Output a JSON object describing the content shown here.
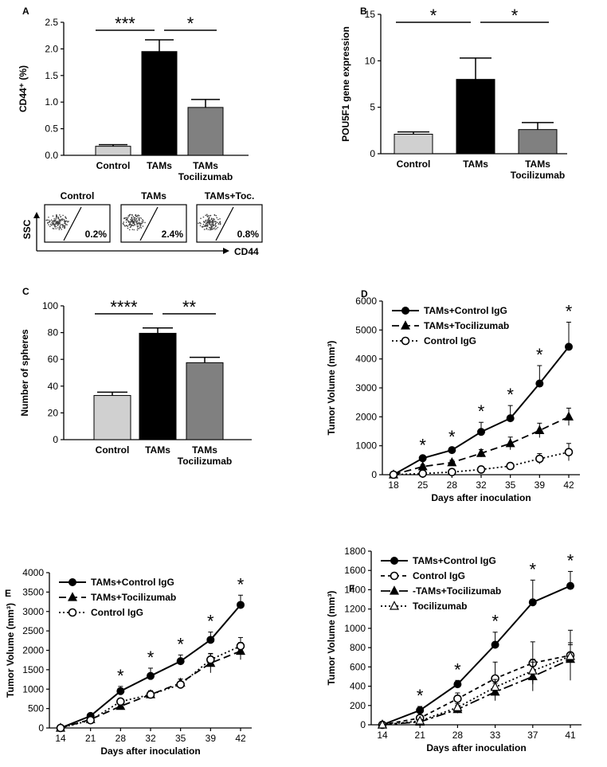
{
  "chart_data": [
    {
      "panel": "A",
      "type": "bar",
      "categories": [
        "Control",
        "TAMs",
        "TAMs\nTocilizumab"
      ],
      "values": [
        0.17,
        1.95,
        0.9
      ],
      "errors": [
        0.03,
        0.22,
        0.15
      ],
      "colors": [
        "#d0d0d0",
        "#000000",
        "#808080"
      ],
      "ylabel": "CD44⁺ (%)",
      "ylim": [
        0,
        2.5
      ],
      "yticks": [
        0.0,
        0.5,
        1.0,
        1.5,
        2.0,
        2.5
      ],
      "yticklabels": [
        "0.0",
        "0.5",
        "1.0",
        "1.5",
        "2.0",
        "2.5"
      ],
      "significance": [
        {
          "from": 0,
          "to": 1,
          "label": "***"
        },
        {
          "from": 1,
          "to": 2,
          "label": "*"
        }
      ]
    },
    {
      "panel": "B",
      "type": "bar",
      "categories": [
        "Control",
        "TAMs",
        "TAMs\nTocilizumab"
      ],
      "values": [
        2.1,
        8.0,
        2.6
      ],
      "errors": [
        0.25,
        2.3,
        0.75
      ],
      "colors": [
        "#d0d0d0",
        "#000000",
        "#808080"
      ],
      "ylabel": "POU5F1 gene expression",
      "ylim": [
        0,
        15
      ],
      "yticks": [
        0,
        5,
        10,
        15
      ],
      "yticklabels": [
        "0",
        "5",
        "10",
        "15"
      ],
      "significance": [
        {
          "from": 0,
          "to": 1,
          "label": "*"
        },
        {
          "from": 1,
          "to": 2,
          "label": "*"
        }
      ]
    },
    {
      "panel": "C",
      "type": "bar",
      "categories": [
        "Control",
        "TAMs",
        "TAMs\nTocilizumab"
      ],
      "values": [
        33,
        79.5,
        57.5
      ],
      "errors": [
        2.5,
        4.0,
        4.0
      ],
      "colors": [
        "#d0d0d0",
        "#000000",
        "#808080"
      ],
      "ylabel": "Number of spheres",
      "ylim": [
        0,
        100
      ],
      "yticks": [
        0,
        20,
        40,
        60,
        80,
        100
      ],
      "yticklabels": [
        "0",
        "20",
        "40",
        "60",
        "80",
        "100"
      ],
      "significance": [
        {
          "from": 0,
          "to": 1,
          "label": "****"
        },
        {
          "from": 1,
          "to": 2,
          "label": "**"
        }
      ]
    },
    {
      "panel": "D",
      "type": "line",
      "categories": [
        "18",
        "25",
        "28",
        "32",
        "35",
        "39",
        "42"
      ],
      "xlabel": "Days after inoculation",
      "ylabel": "Tumor Volume (mm³)",
      "ylim": [
        0,
        6000
      ],
      "yticks": [
        0,
        1000,
        2000,
        3000,
        4000,
        5000,
        6000
      ],
      "yticklabels": [
        "0",
        "1000",
        "2000",
        "3000",
        "4000",
        "5000",
        "6000"
      ],
      "series": [
        {
          "name": "TAMs+Control IgG",
          "marker": "circle-filled",
          "dash": "",
          "values": [
            0,
            570,
            850,
            1480,
            1950,
            3150,
            4420
          ],
          "errors": [
            0,
            80,
            90,
            330,
            440,
            620,
            850
          ]
        },
        {
          "name": "TAMs+Tocilizumab",
          "marker": "triangle-filled",
          "dash": "9,5",
          "values": [
            0,
            280,
            420,
            740,
            1080,
            1530,
            2000
          ],
          "errors": [
            0,
            60,
            80,
            130,
            220,
            250,
            300
          ]
        },
        {
          "name": "Control IgG",
          "marker": "circle-open",
          "dash": "2,3",
          "values": [
            0,
            40,
            90,
            180,
            300,
            550,
            780
          ],
          "errors": [
            0,
            20,
            30,
            50,
            80,
            180,
            300
          ]
        }
      ],
      "stars": [
        {
          "index": 1,
          "label": "*"
        },
        {
          "index": 2,
          "label": "*"
        },
        {
          "index": 3,
          "label": "*"
        },
        {
          "index": 4,
          "label": "*"
        },
        {
          "index": 5,
          "label": "*"
        },
        {
          "index": 6,
          "label": "*"
        }
      ],
      "legend": "top-left"
    },
    {
      "panel": "E",
      "type": "line",
      "categories": [
        "14",
        "21",
        "28",
        "32",
        "35",
        "39",
        "42"
      ],
      "xlabel": "Days after inoculation",
      "ylabel": "Tumor Volume (mm³)",
      "ylim": [
        0,
        4000
      ],
      "yticks": [
        0,
        500,
        1000,
        1500,
        2000,
        2500,
        3000,
        3500,
        4000
      ],
      "yticklabels": [
        "0",
        "500",
        "1000",
        "1500",
        "2000",
        "2500",
        "3000",
        "3500",
        "4000"
      ],
      "series": [
        {
          "name": "TAMs+Control IgG",
          "marker": "circle-filled",
          "dash": "",
          "values": [
            0,
            310,
            950,
            1340,
            1720,
            2270,
            3170
          ],
          "errors": [
            0,
            40,
            120,
            200,
            160,
            200,
            250
          ]
        },
        {
          "name": "TAMs+Tocilizumab",
          "marker": "triangle-filled",
          "dash": "9,5",
          "values": [
            0,
            220,
            560,
            860,
            1160,
            1670,
            1980
          ],
          "errors": [
            0,
            40,
            60,
            80,
            100,
            250,
            220
          ]
        },
        {
          "name": "Control IgG",
          "marker": "circle-open",
          "dash": "2,3",
          "values": [
            0,
            200,
            680,
            860,
            1120,
            1760,
            2110
          ],
          "errors": [
            0,
            30,
            80,
            100,
            80,
            150,
            220
          ]
        }
      ],
      "stars": [
        {
          "index": 2,
          "label": "*"
        },
        {
          "index": 3,
          "label": "*"
        },
        {
          "index": 4,
          "label": "*"
        },
        {
          "index": 5,
          "label": "*"
        },
        {
          "index": 6,
          "label": "*"
        }
      ],
      "legend": "top-left"
    },
    {
      "panel": "F",
      "type": "line",
      "categories": [
        "14",
        "21",
        "28",
        "33",
        "37",
        "41"
      ],
      "xlabel": "Days after inoculation",
      "ylabel": "Tumor Volume (mm³)",
      "ylim": [
        0,
        1800
      ],
      "yticks": [
        0,
        200,
        400,
        600,
        800,
        1000,
        1200,
        1400,
        1600,
        1800
      ],
      "yticklabels": [
        "0",
        "200",
        "400",
        "600",
        "800",
        "1000",
        "1200",
        "1400",
        "1600",
        "1800"
      ],
      "series": [
        {
          "name": "TAMs+Control IgG",
          "marker": "circle-filled",
          "dash": "",
          "values": [
            0,
            150,
            420,
            830,
            1270,
            1440
          ],
          "errors": [
            0,
            40,
            40,
            130,
            230,
            150
          ]
        },
        {
          "name": "Control IgG",
          "marker": "circle-open",
          "dash": "5,4",
          "values": [
            0,
            70,
            270,
            480,
            640,
            720
          ],
          "errors": [
            0,
            30,
            60,
            170,
            220,
            260
          ]
        },
        {
          "name": "-TAMs+Tocilizumab",
          "marker": "triangle-filled",
          "dash": "12,4,3,4",
          "values": [
            0,
            30,
            160,
            340,
            500,
            680
          ],
          "errors": [
            0,
            15,
            40,
            90,
            150,
            150
          ]
        },
        {
          "name": "Tocilizumab",
          "marker": "triangle-open",
          "dash": "2,3",
          "values": [
            0,
            40,
            180,
            390,
            560,
            710
          ],
          "errors": [
            0,
            15,
            40,
            80,
            120,
            140
          ]
        }
      ],
      "stars": [
        {
          "index": 1,
          "label": "*"
        },
        {
          "index": 2,
          "label": "*"
        },
        {
          "index": 3,
          "label": "*"
        },
        {
          "index": 4,
          "label": "*"
        },
        {
          "index": 5,
          "label": "*"
        }
      ],
      "legend": "top-left"
    }
  ],
  "panels": [
    "A",
    "B",
    "C",
    "D",
    "E",
    "F"
  ],
  "flow": {
    "ylabel": "SSC",
    "xlabel": "CD44",
    "plots": [
      {
        "title": "Control",
        "pct": "0.2%"
      },
      {
        "title": "TAMs",
        "pct": "2.4%"
      },
      {
        "title": "TAMs+Toc.",
        "pct": "0.8%"
      }
    ]
  }
}
